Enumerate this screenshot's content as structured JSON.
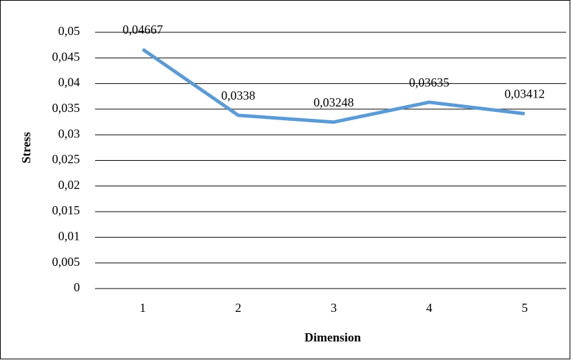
{
  "chart_data": {
    "type": "line",
    "x_label": "Dimension",
    "y_label": "Stress",
    "categories": [
      "1",
      "2",
      "3",
      "4",
      "5"
    ],
    "series": [
      {
        "name": "Stress",
        "color": "#5b9bd5",
        "values": [
          0.04667,
          0.0338,
          0.03248,
          0.03635,
          0.03412
        ],
        "value_labels": [
          "0,04667",
          "0,0338",
          "0,03248",
          "0,03635",
          "0,03412"
        ]
      }
    ],
    "ylim": [
      0,
      0.05
    ],
    "yticks": [
      0,
      {
        "value": 0.005,
        "label": "0,005"
      },
      {
        "value": 0.01,
        "label": "0,01"
      },
      {
        "value": 0.015,
        "label": "0,015"
      },
      {
        "value": 0.02,
        "label": "0,02"
      },
      {
        "value": 0.025,
        "label": "0,025"
      },
      {
        "value": 0.03,
        "label": "0,03"
      },
      {
        "value": 0.035,
        "label": "0,035"
      },
      {
        "value": 0.04,
        "label": "0,04"
      },
      {
        "value": 0.045,
        "label": "0,045"
      },
      {
        "value": 0.05,
        "label": "0,05"
      }
    ],
    "grid": true
  }
}
